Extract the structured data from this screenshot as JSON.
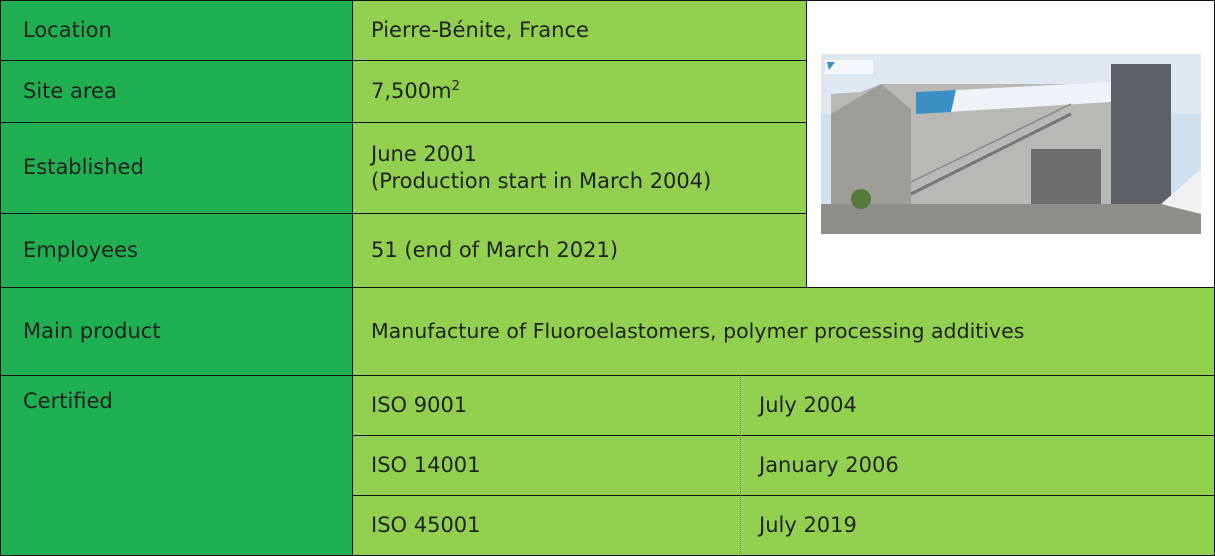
{
  "table": {
    "rows": [
      {
        "label": "Location",
        "value": "Pierre-Bénite, France"
      },
      {
        "label": "Site area",
        "value": "7,500m",
        "superscript": "2"
      },
      {
        "label": "Established",
        "value": "June 2001",
        "note": "(Production start in March 2004)"
      },
      {
        "label": "Employees",
        "value": "51 (end of March 2021)"
      },
      {
        "label": "Main product",
        "value": "Manufacture of Fluoroelastomers, polymer processing additives"
      }
    ],
    "certified": {
      "label": "Certified",
      "items": [
        {
          "standard": "ISO 9001",
          "date": "July 2004"
        },
        {
          "standard": "ISO 14001",
          "date": "January 2006"
        },
        {
          "standard": "ISO 45001",
          "date": "July 2019"
        }
      ]
    }
  }
}
